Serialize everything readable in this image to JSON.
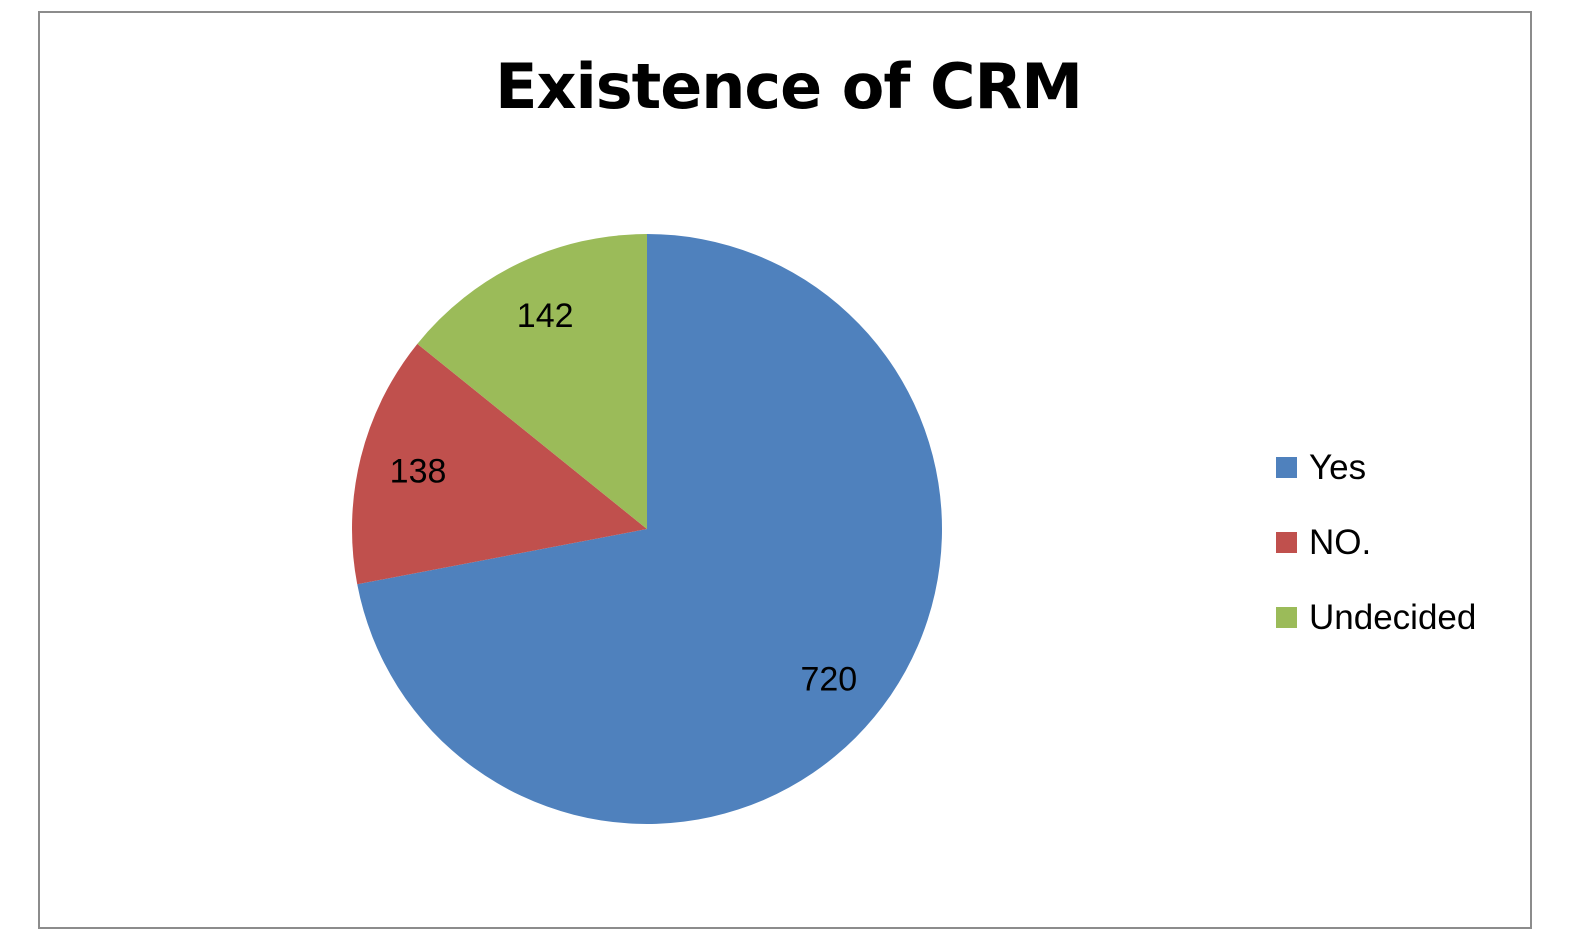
{
  "chart_data": {
    "type": "pie",
    "title": "Existence of CRM",
    "categories": [
      "Yes",
      "NO.",
      "Undecided"
    ],
    "values": [
      720,
      138,
      142
    ],
    "colors": [
      "#4f81bd",
      "#c0504d",
      "#9bbb59"
    ],
    "data_labels": [
      "720",
      "138",
      "142"
    ],
    "legend_position": "right",
    "start_angle": "top",
    "direction": "clockwise"
  }
}
